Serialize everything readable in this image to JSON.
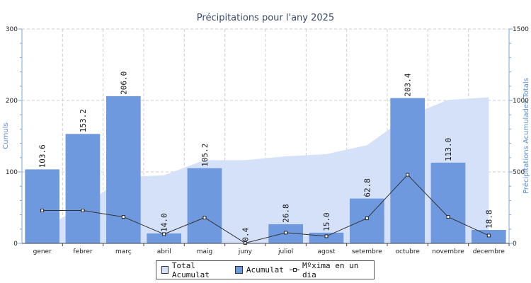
{
  "chart_data": {
    "type": "bar",
    "title": "Précipitations pour l'any 2025",
    "ylabel": "Cumuls",
    "ylabel_right": "Précipitations Acumulades Totals",
    "ylim": [
      0,
      300
    ],
    "ylim_right": [
      0,
      1500
    ],
    "yticks": [
      "0",
      "100",
      "200",
      "300"
    ],
    "yticks_right": [
      "0",
      "500",
      "1000",
      "1500"
    ],
    "categories": [
      "gener",
      "febrer",
      "març",
      "abril",
      "maig",
      "juny",
      "juliol",
      "agost",
      "setembre",
      "octubre",
      "novembre",
      "decembre"
    ],
    "series": [
      {
        "name": "Total Acumulat",
        "type": "area",
        "axis": "right",
        "color": "#d4e1f9",
        "values": [
          103.6,
          256.8,
          462.8,
          476.8,
          582.0,
          582.4,
          609.2,
          624.2,
          687.0,
          890.4,
          1003.4,
          1022.2
        ]
      },
      {
        "name": "Acumulat",
        "type": "bar",
        "axis": "left",
        "color": "#6f99df",
        "values": [
          103.6,
          153.2,
          206.0,
          14.0,
          105.2,
          0.4,
          26.8,
          15.0,
          62.8,
          203.4,
          113.0,
          18.8
        ],
        "labels": [
          "103.6",
          "153.2",
          "206.0",
          "14.0",
          "105.2",
          "0.4",
          "26.8",
          "15.0",
          "62.8",
          "203.4",
          "113.0",
          "18.8"
        ]
      },
      {
        "name": "Màxima en un dia",
        "type": "line",
        "axis": "left",
        "color": "#333333",
        "values": [
          46,
          46,
          37,
          13,
          36,
          0.4,
          15,
          10,
          35,
          96,
          37,
          11
        ]
      }
    ],
    "grid": true,
    "legend_position": "bottom",
    "legend": [
      "Total Acumulat",
      "Acumulat",
      "Mºxima en un dia"
    ]
  }
}
